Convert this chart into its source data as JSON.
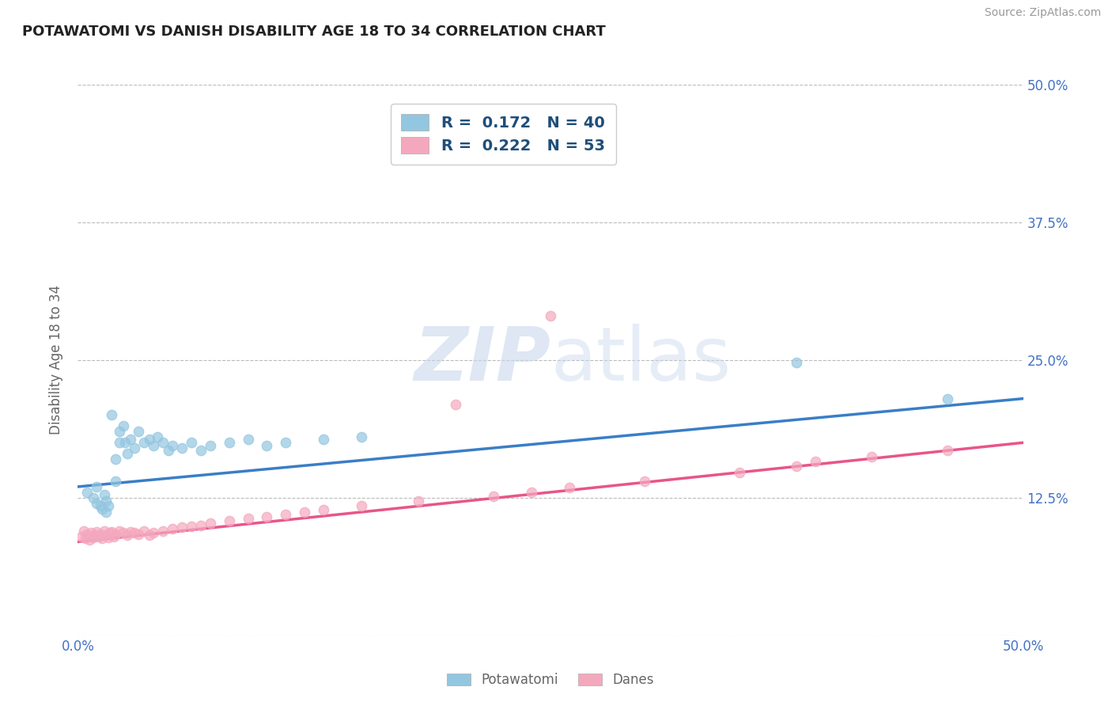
{
  "title": "POTAWATOMI VS DANISH DISABILITY AGE 18 TO 34 CORRELATION CHART",
  "source": "Source: ZipAtlas.com",
  "ylabel": "Disability Age 18 to 34",
  "xlim": [
    0.0,
    0.5
  ],
  "ylim": [
    0.0,
    0.5
  ],
  "xtick_vals": [
    0.0,
    0.125,
    0.25,
    0.375,
    0.5
  ],
  "ytick_vals": [
    0.0,
    0.125,
    0.25,
    0.375,
    0.5
  ],
  "ytick_labels_right": [
    "",
    "12.5%",
    "25.0%",
    "37.5%",
    "50.0%"
  ],
  "xtick_labels_bottom": [
    "0.0%",
    "",
    "",
    "",
    "50.0%"
  ],
  "blue_color": "#93C6E0",
  "pink_color": "#F4A8BE",
  "blue_line_color": "#3A7EC6",
  "pink_line_color": "#E8558A",
  "ytick_label_color": "#4472C4",
  "xtick_label_color": "#4472C4",
  "legend_text_color": "#1F4E79",
  "r_blue": 0.172,
  "n_blue": 40,
  "r_pink": 0.222,
  "n_pink": 53,
  "watermark_zip": "ZIP",
  "watermark_atlas": "atlas",
  "legend_label_blue": "Potawatomi",
  "legend_label_pink": "Danes",
  "blue_scatter_x": [
    0.005,
    0.008,
    0.01,
    0.01,
    0.012,
    0.013,
    0.014,
    0.015,
    0.015,
    0.016,
    0.018,
    0.02,
    0.02,
    0.022,
    0.022,
    0.024,
    0.025,
    0.026,
    0.028,
    0.03,
    0.032,
    0.035,
    0.038,
    0.04,
    0.042,
    0.045,
    0.048,
    0.05,
    0.055,
    0.06,
    0.065,
    0.07,
    0.08,
    0.09,
    0.1,
    0.11,
    0.13,
    0.15,
    0.38,
    0.46
  ],
  "blue_scatter_y": [
    0.13,
    0.125,
    0.135,
    0.12,
    0.118,
    0.115,
    0.128,
    0.112,
    0.122,
    0.118,
    0.2,
    0.14,
    0.16,
    0.175,
    0.185,
    0.19,
    0.175,
    0.165,
    0.178,
    0.17,
    0.185,
    0.175,
    0.178,
    0.172,
    0.18,
    0.175,
    0.168,
    0.172,
    0.17,
    0.175,
    0.168,
    0.172,
    0.175,
    0.178,
    0.172,
    0.175,
    0.178,
    0.18,
    0.248,
    0.215
  ],
  "pink_scatter_x": [
    0.002,
    0.003,
    0.004,
    0.005,
    0.006,
    0.007,
    0.008,
    0.009,
    0.01,
    0.011,
    0.012,
    0.013,
    0.014,
    0.015,
    0.016,
    0.017,
    0.018,
    0.019,
    0.02,
    0.022,
    0.024,
    0.026,
    0.028,
    0.03,
    0.032,
    0.035,
    0.038,
    0.04,
    0.045,
    0.05,
    0.055,
    0.06,
    0.065,
    0.07,
    0.08,
    0.09,
    0.1,
    0.11,
    0.12,
    0.13,
    0.15,
    0.18,
    0.22,
    0.24,
    0.26,
    0.3,
    0.35,
    0.38,
    0.39,
    0.42,
    0.46,
    0.25,
    0.2
  ],
  "pink_scatter_y": [
    0.09,
    0.095,
    0.088,
    0.092,
    0.087,
    0.093,
    0.089,
    0.091,
    0.094,
    0.09,
    0.092,
    0.088,
    0.095,
    0.091,
    0.089,
    0.093,
    0.094,
    0.09,
    0.092,
    0.095,
    0.093,
    0.091,
    0.094,
    0.093,
    0.092,
    0.095,
    0.091,
    0.093,
    0.095,
    0.097,
    0.098,
    0.099,
    0.1,
    0.102,
    0.104,
    0.106,
    0.108,
    0.11,
    0.112,
    0.114,
    0.118,
    0.122,
    0.126,
    0.13,
    0.134,
    0.14,
    0.148,
    0.154,
    0.158,
    0.162,
    0.168,
    0.29,
    0.21
  ]
}
